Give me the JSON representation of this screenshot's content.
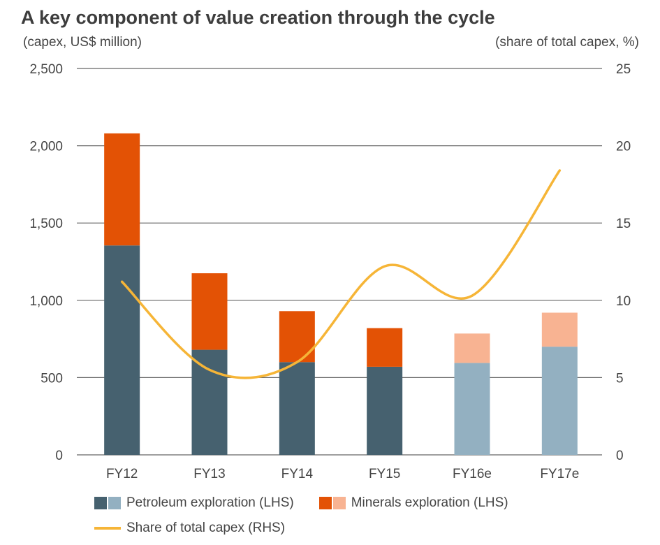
{
  "title": "A key component of value creation through the cycle",
  "left_unit": "(capex, US$ million)",
  "right_unit": "(share of total capex, %)",
  "colors": {
    "petroleum": "#46616f",
    "petroleum_estimate": "#93b0c1",
    "minerals": "#e35205",
    "minerals_estimate": "#f8b392",
    "share_line": "#f6b537",
    "grid": "#666666"
  },
  "legend": {
    "petroleum": "Petroleum exploration (LHS)",
    "minerals": "Minerals exploration (LHS)",
    "share": "Share of total capex (RHS)"
  },
  "chart_data": {
    "type": "bar",
    "stacked": true,
    "categories": [
      "FY12",
      "FY13",
      "FY14",
      "FY15",
      "FY16e",
      "FY17e"
    ],
    "estimate_categories": [
      "FY16e",
      "FY17e"
    ],
    "series": [
      {
        "name": "Petroleum exploration (LHS)",
        "axis": "left",
        "type": "bar",
        "values": [
          1355,
          680,
          600,
          570,
          595,
          700
        ]
      },
      {
        "name": "Minerals exploration (LHS)",
        "axis": "left",
        "type": "bar",
        "values": [
          725,
          495,
          330,
          250,
          190,
          220
        ]
      },
      {
        "name": "Share of total capex (RHS)",
        "axis": "right",
        "type": "line",
        "smooth": true,
        "values": [
          11.2,
          5.5,
          6.0,
          12.2,
          10.3,
          18.4
        ]
      }
    ],
    "left_axis": {
      "ylim": [
        0,
        2500
      ],
      "ticks": [
        "0",
        "500",
        "1,000",
        "1,500",
        "2,000",
        "2,500"
      ]
    },
    "right_axis": {
      "ylim": [
        0,
        25
      ],
      "ticks": [
        "0",
        "5",
        "10",
        "15",
        "20",
        "25"
      ]
    },
    "grid": true,
    "legend_position": "bottom"
  }
}
